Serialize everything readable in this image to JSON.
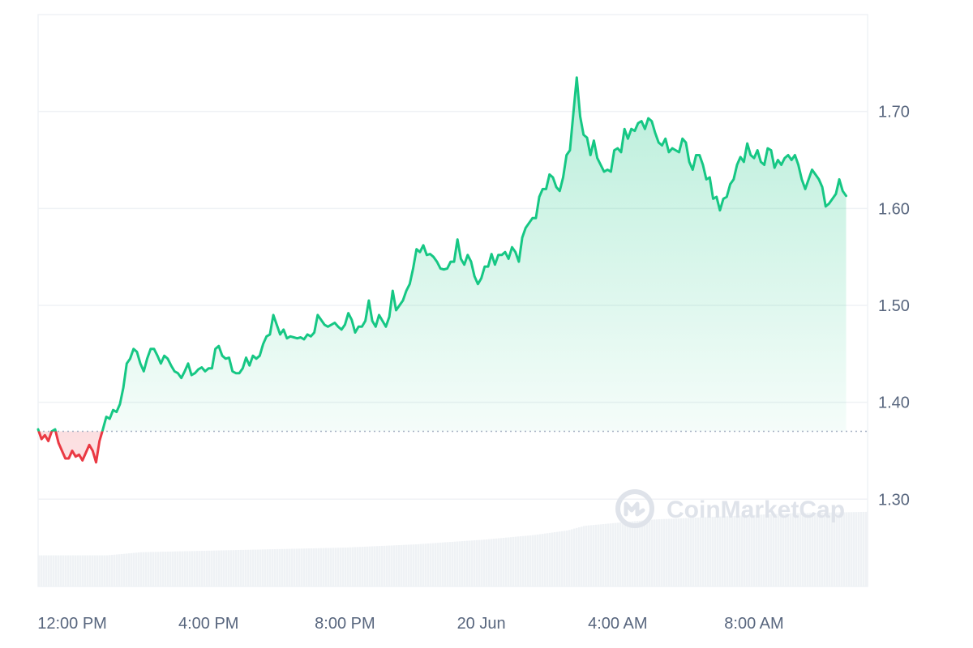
{
  "chart_data": {
    "type": "area",
    "title": "",
    "xlabel": "",
    "ylabel": "",
    "ylim": [
      1.21,
      1.8
    ],
    "yticks": [
      1.3,
      1.4,
      1.5,
      1.6,
      1.7
    ],
    "ytick_labels": [
      "1.30",
      "1.40",
      "1.50",
      "1.60",
      "1.70"
    ],
    "x_range_hours": [
      -1,
      23.33
    ],
    "xtick_labels": [
      {
        "label": "12:00 PM",
        "t": 0
      },
      {
        "label": "4:00 PM",
        "t": 4
      },
      {
        "label": "8:00 PM",
        "t": 8
      },
      {
        "label": "20 Jun",
        "t": 12
      },
      {
        "label": "4:00 AM",
        "t": 16
      },
      {
        "label": "8:00 AM",
        "t": 20
      }
    ],
    "baseline": 1.37,
    "colors": {
      "up": "#16c784",
      "down": "#ea3943",
      "grid": "#eff2f5",
      "volume": "#eff2f5",
      "baseline": "#a6b0c3",
      "watermark": "#dfe3ea"
    },
    "price_series": [
      [
        -1.0,
        1.372
      ],
      [
        -0.9,
        1.362
      ],
      [
        -0.8,
        1.366
      ],
      [
        -0.7,
        1.36
      ],
      [
        -0.6,
        1.37
      ],
      [
        -0.5,
        1.372
      ],
      [
        -0.4,
        1.358
      ],
      [
        -0.3,
        1.35
      ],
      [
        -0.2,
        1.342
      ],
      [
        -0.1,
        1.342
      ],
      [
        0.0,
        1.35
      ],
      [
        0.1,
        1.344
      ],
      [
        0.2,
        1.346
      ],
      [
        0.3,
        1.34
      ],
      [
        0.4,
        1.348
      ],
      [
        0.5,
        1.356
      ],
      [
        0.6,
        1.35
      ],
      [
        0.7,
        1.338
      ],
      [
        0.8,
        1.36
      ],
      [
        0.9,
        1.372
      ],
      [
        1.0,
        1.385
      ],
      [
        1.1,
        1.383
      ],
      [
        1.2,
        1.392
      ],
      [
        1.3,
        1.39
      ],
      [
        1.4,
        1.398
      ],
      [
        1.5,
        1.415
      ],
      [
        1.6,
        1.44
      ],
      [
        1.7,
        1.445
      ],
      [
        1.8,
        1.455
      ],
      [
        1.9,
        1.452
      ],
      [
        2.0,
        1.44
      ],
      [
        2.1,
        1.432
      ],
      [
        2.2,
        1.445
      ],
      [
        2.3,
        1.455
      ],
      [
        2.4,
        1.455
      ],
      [
        2.5,
        1.448
      ],
      [
        2.6,
        1.44
      ],
      [
        2.7,
        1.448
      ],
      [
        2.8,
        1.445
      ],
      [
        2.9,
        1.438
      ],
      [
        3.0,
        1.432
      ],
      [
        3.1,
        1.43
      ],
      [
        3.2,
        1.425
      ],
      [
        3.3,
        1.432
      ],
      [
        3.4,
        1.44
      ],
      [
        3.5,
        1.428
      ],
      [
        3.6,
        1.43
      ],
      [
        3.7,
        1.434
      ],
      [
        3.8,
        1.436
      ],
      [
        3.9,
        1.432
      ],
      [
        4.0,
        1.435
      ],
      [
        4.1,
        1.435
      ],
      [
        4.2,
        1.455
      ],
      [
        4.3,
        1.458
      ],
      [
        4.4,
        1.448
      ],
      [
        4.5,
        1.445
      ],
      [
        4.6,
        1.446
      ],
      [
        4.7,
        1.432
      ],
      [
        4.8,
        1.43
      ],
      [
        4.9,
        1.43
      ],
      [
        5.0,
        1.435
      ],
      [
        5.1,
        1.446
      ],
      [
        5.2,
        1.438
      ],
      [
        5.3,
        1.448
      ],
      [
        5.4,
        1.445
      ],
      [
        5.5,
        1.448
      ],
      [
        5.6,
        1.46
      ],
      [
        5.7,
        1.468
      ],
      [
        5.8,
        1.47
      ],
      [
        5.9,
        1.49
      ],
      [
        6.0,
        1.48
      ],
      [
        6.1,
        1.47
      ],
      [
        6.2,
        1.475
      ],
      [
        6.3,
        1.466
      ],
      [
        6.4,
        1.468
      ],
      [
        6.5,
        1.467
      ],
      [
        6.6,
        1.466
      ],
      [
        6.7,
        1.467
      ],
      [
        6.8,
        1.465
      ],
      [
        6.9,
        1.47
      ],
      [
        7.0,
        1.468
      ],
      [
        7.1,
        1.472
      ],
      [
        7.2,
        1.49
      ],
      [
        7.3,
        1.485
      ],
      [
        7.4,
        1.48
      ],
      [
        7.5,
        1.478
      ],
      [
        7.6,
        1.48
      ],
      [
        7.7,
        1.482
      ],
      [
        7.8,
        1.478
      ],
      [
        7.9,
        1.475
      ],
      [
        8.0,
        1.48
      ],
      [
        8.1,
        1.492
      ],
      [
        8.2,
        1.485
      ],
      [
        8.3,
        1.472
      ],
      [
        8.4,
        1.478
      ],
      [
        8.5,
        1.478
      ],
      [
        8.6,
        1.484
      ],
      [
        8.7,
        1.505
      ],
      [
        8.8,
        1.484
      ],
      [
        8.9,
        1.478
      ],
      [
        9.0,
        1.49
      ],
      [
        9.1,
        1.484
      ],
      [
        9.2,
        1.478
      ],
      [
        9.3,
        1.488
      ],
      [
        9.4,
        1.515
      ],
      [
        9.5,
        1.495
      ],
      [
        9.6,
        1.5
      ],
      [
        9.7,
        1.505
      ],
      [
        9.8,
        1.515
      ],
      [
        9.9,
        1.522
      ],
      [
        10.0,
        1.538
      ],
      [
        10.1,
        1.558
      ],
      [
        10.2,
        1.555
      ],
      [
        10.3,
        1.562
      ],
      [
        10.4,
        1.552
      ],
      [
        10.5,
        1.553
      ],
      [
        10.6,
        1.55
      ],
      [
        10.7,
        1.545
      ],
      [
        10.8,
        1.538
      ],
      [
        10.9,
        1.537
      ],
      [
        11.0,
        1.538
      ],
      [
        11.1,
        1.545
      ],
      [
        11.2,
        1.545
      ],
      [
        11.3,
        1.568
      ],
      [
        11.4,
        1.548
      ],
      [
        11.5,
        1.542
      ],
      [
        11.6,
        1.552
      ],
      [
        11.7,
        1.545
      ],
      [
        11.8,
        1.53
      ],
      [
        11.9,
        1.522
      ],
      [
        12.0,
        1.528
      ],
      [
        12.1,
        1.54
      ],
      [
        12.2,
        1.54
      ],
      [
        12.3,
        1.553
      ],
      [
        12.4,
        1.542
      ],
      [
        12.5,
        1.552
      ],
      [
        12.6,
        1.552
      ],
      [
        12.7,
        1.555
      ],
      [
        12.8,
        1.548
      ],
      [
        12.9,
        1.56
      ],
      [
        13.0,
        1.555
      ],
      [
        13.1,
        1.545
      ],
      [
        13.2,
        1.57
      ],
      [
        13.3,
        1.58
      ],
      [
        13.4,
        1.585
      ],
      [
        13.5,
        1.59
      ],
      [
        13.6,
        1.59
      ],
      [
        13.7,
        1.612
      ],
      [
        13.8,
        1.62
      ],
      [
        13.9,
        1.62
      ],
      [
        14.0,
        1.635
      ],
      [
        14.1,
        1.632
      ],
      [
        14.2,
        1.622
      ],
      [
        14.3,
        1.618
      ],
      [
        14.4,
        1.632
      ],
      [
        14.5,
        1.655
      ],
      [
        14.6,
        1.66
      ],
      [
        14.7,
        1.698
      ],
      [
        14.8,
        1.735
      ],
      [
        14.9,
        1.695
      ],
      [
        15.0,
        1.676
      ],
      [
        15.1,
        1.673
      ],
      [
        15.2,
        1.655
      ],
      [
        15.3,
        1.67
      ],
      [
        15.4,
        1.652
      ],
      [
        15.5,
        1.645
      ],
      [
        15.6,
        1.638
      ],
      [
        15.7,
        1.64
      ],
      [
        15.8,
        1.638
      ],
      [
        15.9,
        1.66
      ],
      [
        16.0,
        1.662
      ],
      [
        16.1,
        1.658
      ],
      [
        16.2,
        1.682
      ],
      [
        16.3,
        1.672
      ],
      [
        16.4,
        1.682
      ],
      [
        16.5,
        1.68
      ],
      [
        16.6,
        1.688
      ],
      [
        16.7,
        1.69
      ],
      [
        16.8,
        1.682
      ],
      [
        16.9,
        1.693
      ],
      [
        17.0,
        1.69
      ],
      [
        17.1,
        1.678
      ],
      [
        17.2,
        1.668
      ],
      [
        17.3,
        1.665
      ],
      [
        17.4,
        1.672
      ],
      [
        17.5,
        1.658
      ],
      [
        17.6,
        1.662
      ],
      [
        17.7,
        1.66
      ],
      [
        17.8,
        1.658
      ],
      [
        17.9,
        1.672
      ],
      [
        18.0,
        1.668
      ],
      [
        18.1,
        1.648
      ],
      [
        18.2,
        1.64
      ],
      [
        18.3,
        1.655
      ],
      [
        18.4,
        1.655
      ],
      [
        18.5,
        1.645
      ],
      [
        18.6,
        1.63
      ],
      [
        18.7,
        1.632
      ],
      [
        18.8,
        1.61
      ],
      [
        18.9,
        1.612
      ],
      [
        19.0,
        1.598
      ],
      [
        19.1,
        1.61
      ],
      [
        19.2,
        1.612
      ],
      [
        19.3,
        1.625
      ],
      [
        19.4,
        1.63
      ],
      [
        19.5,
        1.645
      ],
      [
        19.6,
        1.653
      ],
      [
        19.7,
        1.648
      ],
      [
        19.8,
        1.667
      ],
      [
        19.9,
        1.655
      ],
      [
        20.0,
        1.652
      ],
      [
        20.1,
        1.66
      ],
      [
        20.2,
        1.648
      ],
      [
        20.3,
        1.645
      ],
      [
        20.4,
        1.662
      ],
      [
        20.5,
        1.66
      ],
      [
        20.6,
        1.642
      ],
      [
        20.7,
        1.65
      ],
      [
        20.8,
        1.645
      ],
      [
        20.9,
        1.652
      ],
      [
        21.0,
        1.655
      ],
      [
        21.1,
        1.65
      ],
      [
        21.2,
        1.655
      ],
      [
        21.3,
        1.645
      ],
      [
        21.4,
        1.63
      ],
      [
        21.5,
        1.62
      ],
      [
        21.6,
        1.63
      ],
      [
        21.7,
        1.64
      ],
      [
        21.8,
        1.635
      ],
      [
        21.9,
        1.63
      ],
      [
        22.0,
        1.622
      ],
      [
        22.1,
        1.602
      ],
      [
        22.2,
        1.605
      ],
      [
        22.3,
        1.61
      ],
      [
        22.4,
        1.615
      ],
      [
        22.5,
        1.63
      ],
      [
        22.6,
        1.618
      ],
      [
        22.7,
        1.613
      ]
    ],
    "volume_series": {
      "description_free": true,
      "max": 1.0,
      "t": [
        -1.0,
        1.0,
        2.0,
        4.0,
        6.0,
        8.0,
        10.0,
        12.0,
        13.5,
        14.5,
        15.0,
        16.0,
        17.0,
        19.0,
        21.0,
        23.33
      ],
      "v": [
        0.4,
        0.4,
        0.44,
        0.46,
        0.48,
        0.5,
        0.54,
        0.6,
        0.66,
        0.72,
        0.78,
        0.82,
        0.86,
        0.9,
        0.94,
        0.96
      ]
    }
  },
  "watermark": {
    "text": "CoinMarketCap",
    "icon": "coinmarketcap-logo-icon"
  }
}
